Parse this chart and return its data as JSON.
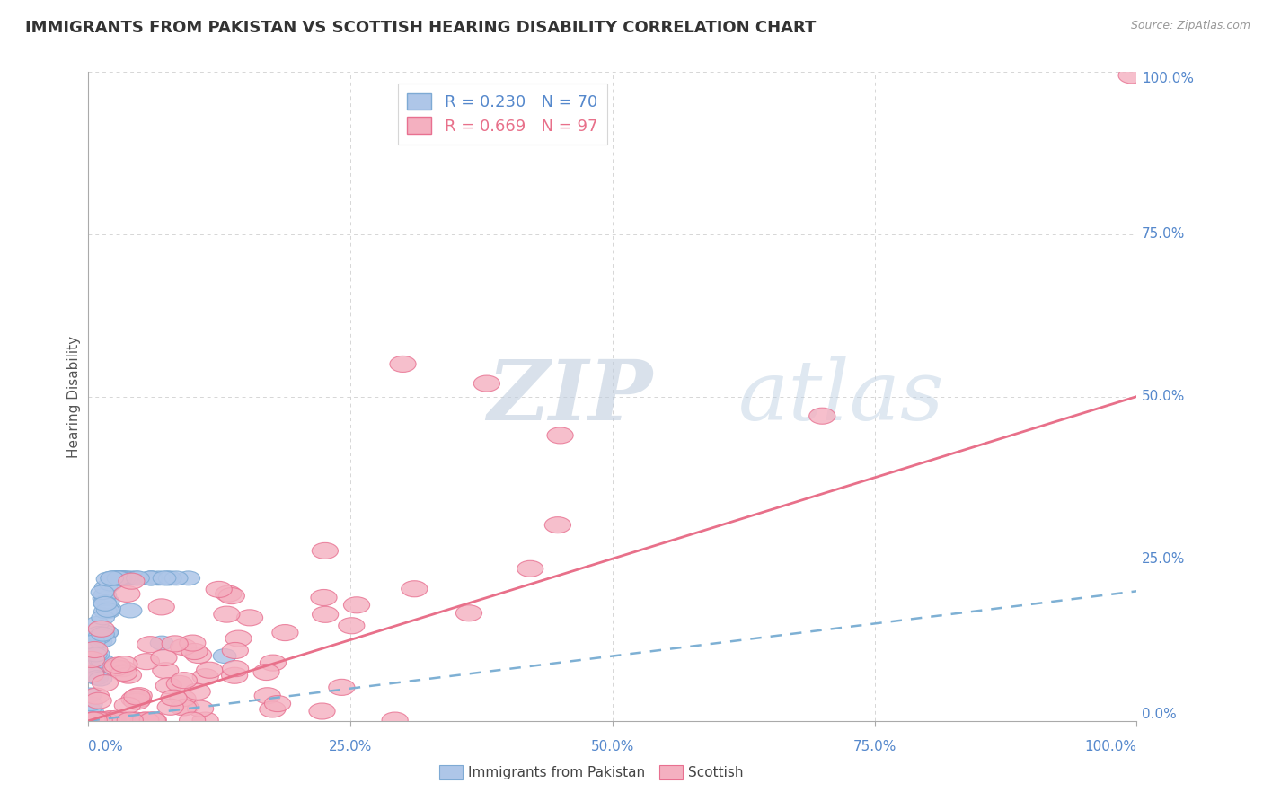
{
  "title": "IMMIGRANTS FROM PAKISTAN VS SCOTTISH HEARING DISABILITY CORRELATION CHART",
  "source": "Source: ZipAtlas.com",
  "ylabel": "Hearing Disability",
  "blue_label": "Immigrants from Pakistan",
  "pink_label": "Scottish",
  "blue_R": 0.23,
  "blue_N": 70,
  "pink_R": 0.669,
  "pink_N": 97,
  "blue_color": "#aec6e8",
  "pink_color": "#f4b0c0",
  "blue_edge_color": "#7eaad4",
  "pink_edge_color": "#e87090",
  "blue_line_color": "#7eb0d4",
  "pink_line_color": "#e8708a",
  "bg_color": "#ffffff",
  "grid_color": "#cccccc",
  "title_color": "#333333",
  "axis_label_color": "#5588cc",
  "watermark_color": "#ccd8e8",
  "xlim": [
    0.0,
    1.0
  ],
  "ylim": [
    0.0,
    1.0
  ],
  "xticks": [
    0.0,
    0.25,
    0.5,
    0.75,
    1.0
  ],
  "yticks": [
    0.0,
    0.25,
    0.5,
    0.75,
    1.0
  ],
  "xticklabels": [
    "0.0%",
    "25.0%",
    "50.0%",
    "75.0%",
    "100.0%"
  ],
  "yticklabels": [
    "0.0%",
    "25.0%",
    "50.0%",
    "75.0%",
    "100.0%"
  ],
  "blue_trend_x0": 0.0,
  "blue_trend_y0": 0.0,
  "blue_trend_x1": 1.0,
  "blue_trend_y1": 0.2,
  "pink_trend_x0": 0.0,
  "pink_trend_y0": 0.0,
  "pink_trend_x1": 1.0,
  "pink_trend_y1": 0.5
}
